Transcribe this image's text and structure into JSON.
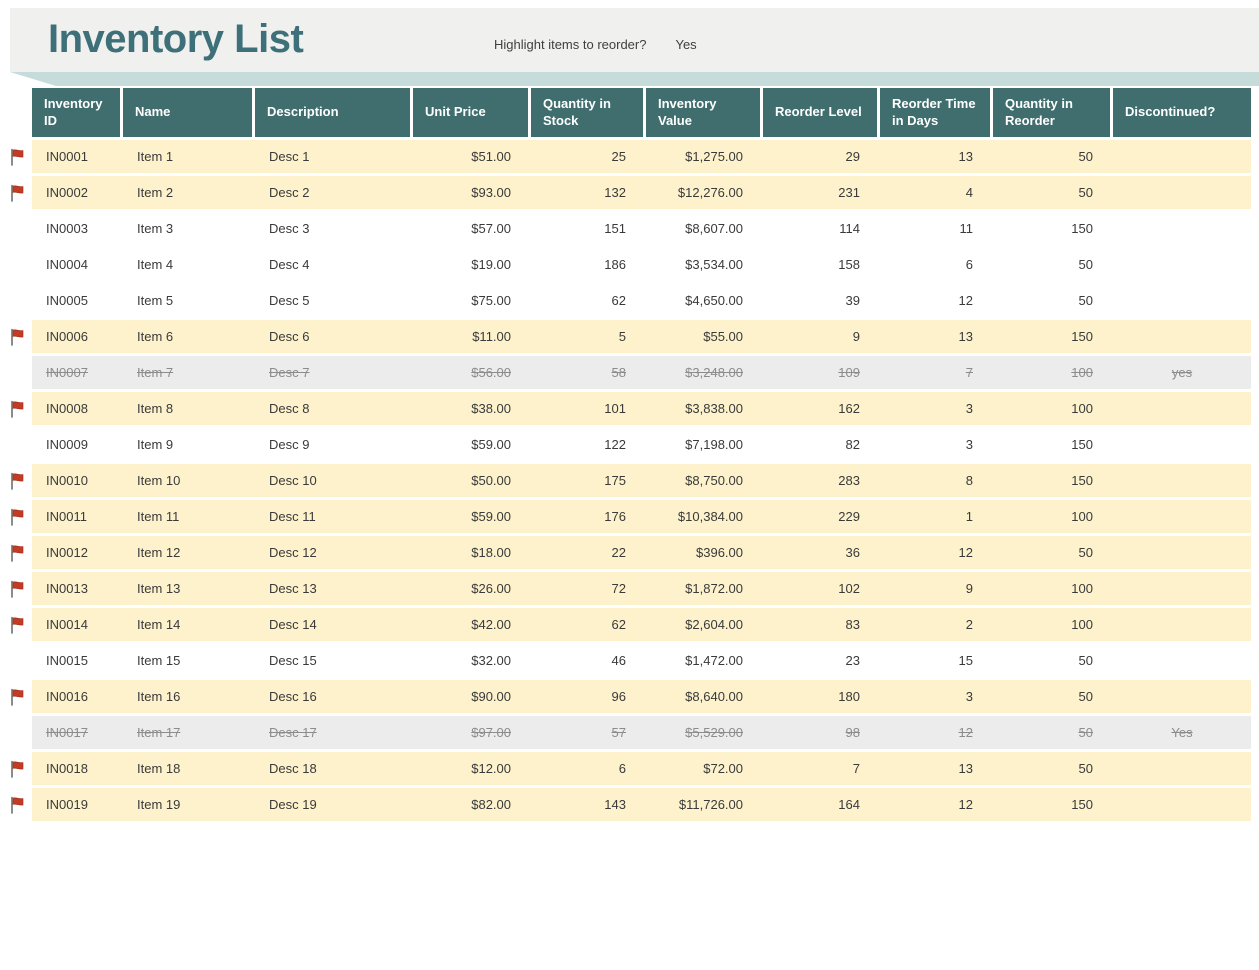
{
  "header": {
    "title": "Inventory List",
    "question": "Highlight items to reorder?",
    "answer": "Yes"
  },
  "colors": {
    "title_text": "#3d7078",
    "header_cell_bg": "#406e6e",
    "reorder_row_bg": "#fdf2cc",
    "discontinued_row_bg": "#ececec",
    "discontinued_text": "#8c8c8c",
    "flag_red": "#c23b22",
    "accent_strip": "#c6dcdb",
    "banner_bg": "#f0f0ef"
  },
  "table": {
    "columns": [
      {
        "label": "Inventory ID",
        "key": "id",
        "align": "left"
      },
      {
        "label": "Name",
        "key": "name",
        "align": "left"
      },
      {
        "label": "Description",
        "key": "desc",
        "align": "left"
      },
      {
        "label": "Unit Price",
        "key": "price",
        "align": "right"
      },
      {
        "label": "Quantity in Stock",
        "key": "qty",
        "align": "right"
      },
      {
        "label": "Inventory Value",
        "key": "value",
        "align": "right"
      },
      {
        "label": "Reorder Level",
        "key": "reorder_level",
        "align": "right"
      },
      {
        "label": "Reorder Time in Days",
        "key": "reorder_time",
        "align": "right"
      },
      {
        "label": "Quantity in Reorder",
        "key": "qty_reorder",
        "align": "right"
      },
      {
        "label": "Discontinued?",
        "key": "discontinued",
        "align": "center"
      }
    ],
    "rows": [
      {
        "id": "IN0001",
        "name": "Item 1",
        "desc": "Desc 1",
        "price": "$51.00",
        "qty": "25",
        "value": "$1,275.00",
        "reorder_level": "29",
        "reorder_time": "13",
        "qty_reorder": "50",
        "discontinued": "",
        "state": "reorder",
        "flagged": true
      },
      {
        "id": "IN0002",
        "name": "Item 2",
        "desc": "Desc 2",
        "price": "$93.00",
        "qty": "132",
        "value": "$12,276.00",
        "reorder_level": "231",
        "reorder_time": "4",
        "qty_reorder": "50",
        "discontinued": "",
        "state": "reorder",
        "flagged": true
      },
      {
        "id": "IN0003",
        "name": "Item 3",
        "desc": "Desc 3",
        "price": "$57.00",
        "qty": "151",
        "value": "$8,607.00",
        "reorder_level": "114",
        "reorder_time": "11",
        "qty_reorder": "150",
        "discontinued": "",
        "state": "normal",
        "flagged": false
      },
      {
        "id": "IN0004",
        "name": "Item 4",
        "desc": "Desc 4",
        "price": "$19.00",
        "qty": "186",
        "value": "$3,534.00",
        "reorder_level": "158",
        "reorder_time": "6",
        "qty_reorder": "50",
        "discontinued": "",
        "state": "normal",
        "flagged": false
      },
      {
        "id": "IN0005",
        "name": "Item 5",
        "desc": "Desc 5",
        "price": "$75.00",
        "qty": "62",
        "value": "$4,650.00",
        "reorder_level": "39",
        "reorder_time": "12",
        "qty_reorder": "50",
        "discontinued": "",
        "state": "normal",
        "flagged": false
      },
      {
        "id": "IN0006",
        "name": "Item 6",
        "desc": "Desc 6",
        "price": "$11.00",
        "qty": "5",
        "value": "$55.00",
        "reorder_level": "9",
        "reorder_time": "13",
        "qty_reorder": "150",
        "discontinued": "",
        "state": "reorder",
        "flagged": true
      },
      {
        "id": "IN0007",
        "name": "Item 7",
        "desc": "Desc 7",
        "price": "$56.00",
        "qty": "58",
        "value": "$3,248.00",
        "reorder_level": "109",
        "reorder_time": "7",
        "qty_reorder": "100",
        "discontinued": "yes",
        "state": "discontinued",
        "flagged": false
      },
      {
        "id": "IN0008",
        "name": "Item 8",
        "desc": "Desc 8",
        "price": "$38.00",
        "qty": "101",
        "value": "$3,838.00",
        "reorder_level": "162",
        "reorder_time": "3",
        "qty_reorder": "100",
        "discontinued": "",
        "state": "reorder",
        "flagged": true
      },
      {
        "id": "IN0009",
        "name": "Item 9",
        "desc": "Desc 9",
        "price": "$59.00",
        "qty": "122",
        "value": "$7,198.00",
        "reorder_level": "82",
        "reorder_time": "3",
        "qty_reorder": "150",
        "discontinued": "",
        "state": "normal",
        "flagged": false
      },
      {
        "id": "IN0010",
        "name": "Item 10",
        "desc": "Desc 10",
        "price": "$50.00",
        "qty": "175",
        "value": "$8,750.00",
        "reorder_level": "283",
        "reorder_time": "8",
        "qty_reorder": "150",
        "discontinued": "",
        "state": "reorder",
        "flagged": true
      },
      {
        "id": "IN0011",
        "name": "Item 11",
        "desc": "Desc 11",
        "price": "$59.00",
        "qty": "176",
        "value": "$10,384.00",
        "reorder_level": "229",
        "reorder_time": "1",
        "qty_reorder": "100",
        "discontinued": "",
        "state": "reorder",
        "flagged": true
      },
      {
        "id": "IN0012",
        "name": "Item 12",
        "desc": "Desc 12",
        "price": "$18.00",
        "qty": "22",
        "value": "$396.00",
        "reorder_level": "36",
        "reorder_time": "12",
        "qty_reorder": "50",
        "discontinued": "",
        "state": "reorder",
        "flagged": true
      },
      {
        "id": "IN0013",
        "name": "Item 13",
        "desc": "Desc 13",
        "price": "$26.00",
        "qty": "72",
        "value": "$1,872.00",
        "reorder_level": "102",
        "reorder_time": "9",
        "qty_reorder": "100",
        "discontinued": "",
        "state": "reorder",
        "flagged": true
      },
      {
        "id": "IN0014",
        "name": "Item 14",
        "desc": "Desc 14",
        "price": "$42.00",
        "qty": "62",
        "value": "$2,604.00",
        "reorder_level": "83",
        "reorder_time": "2",
        "qty_reorder": "100",
        "discontinued": "",
        "state": "reorder",
        "flagged": true
      },
      {
        "id": "IN0015",
        "name": "Item 15",
        "desc": "Desc 15",
        "price": "$32.00",
        "qty": "46",
        "value": "$1,472.00",
        "reorder_level": "23",
        "reorder_time": "15",
        "qty_reorder": "50",
        "discontinued": "",
        "state": "normal",
        "flagged": false
      },
      {
        "id": "IN0016",
        "name": "Item 16",
        "desc": "Desc 16",
        "price": "$90.00",
        "qty": "96",
        "value": "$8,640.00",
        "reorder_level": "180",
        "reorder_time": "3",
        "qty_reorder": "50",
        "discontinued": "",
        "state": "reorder",
        "flagged": true
      },
      {
        "id": "IN0017",
        "name": "Item 17",
        "desc": "Desc 17",
        "price": "$97.00",
        "qty": "57",
        "value": "$5,529.00",
        "reorder_level": "98",
        "reorder_time": "12",
        "qty_reorder": "50",
        "discontinued": "Yes",
        "state": "discontinued",
        "flagged": false
      },
      {
        "id": "IN0018",
        "name": "Item 18",
        "desc": "Desc 18",
        "price": "$12.00",
        "qty": "6",
        "value": "$72.00",
        "reorder_level": "7",
        "reorder_time": "13",
        "qty_reorder": "50",
        "discontinued": "",
        "state": "reorder",
        "flagged": true
      },
      {
        "id": "IN0019",
        "name": "Item 19",
        "desc": "Desc 19",
        "price": "$82.00",
        "qty": "143",
        "value": "$11,726.00",
        "reorder_level": "164",
        "reorder_time": "12",
        "qty_reorder": "150",
        "discontinued": "",
        "state": "reorder",
        "flagged": true
      }
    ]
  }
}
